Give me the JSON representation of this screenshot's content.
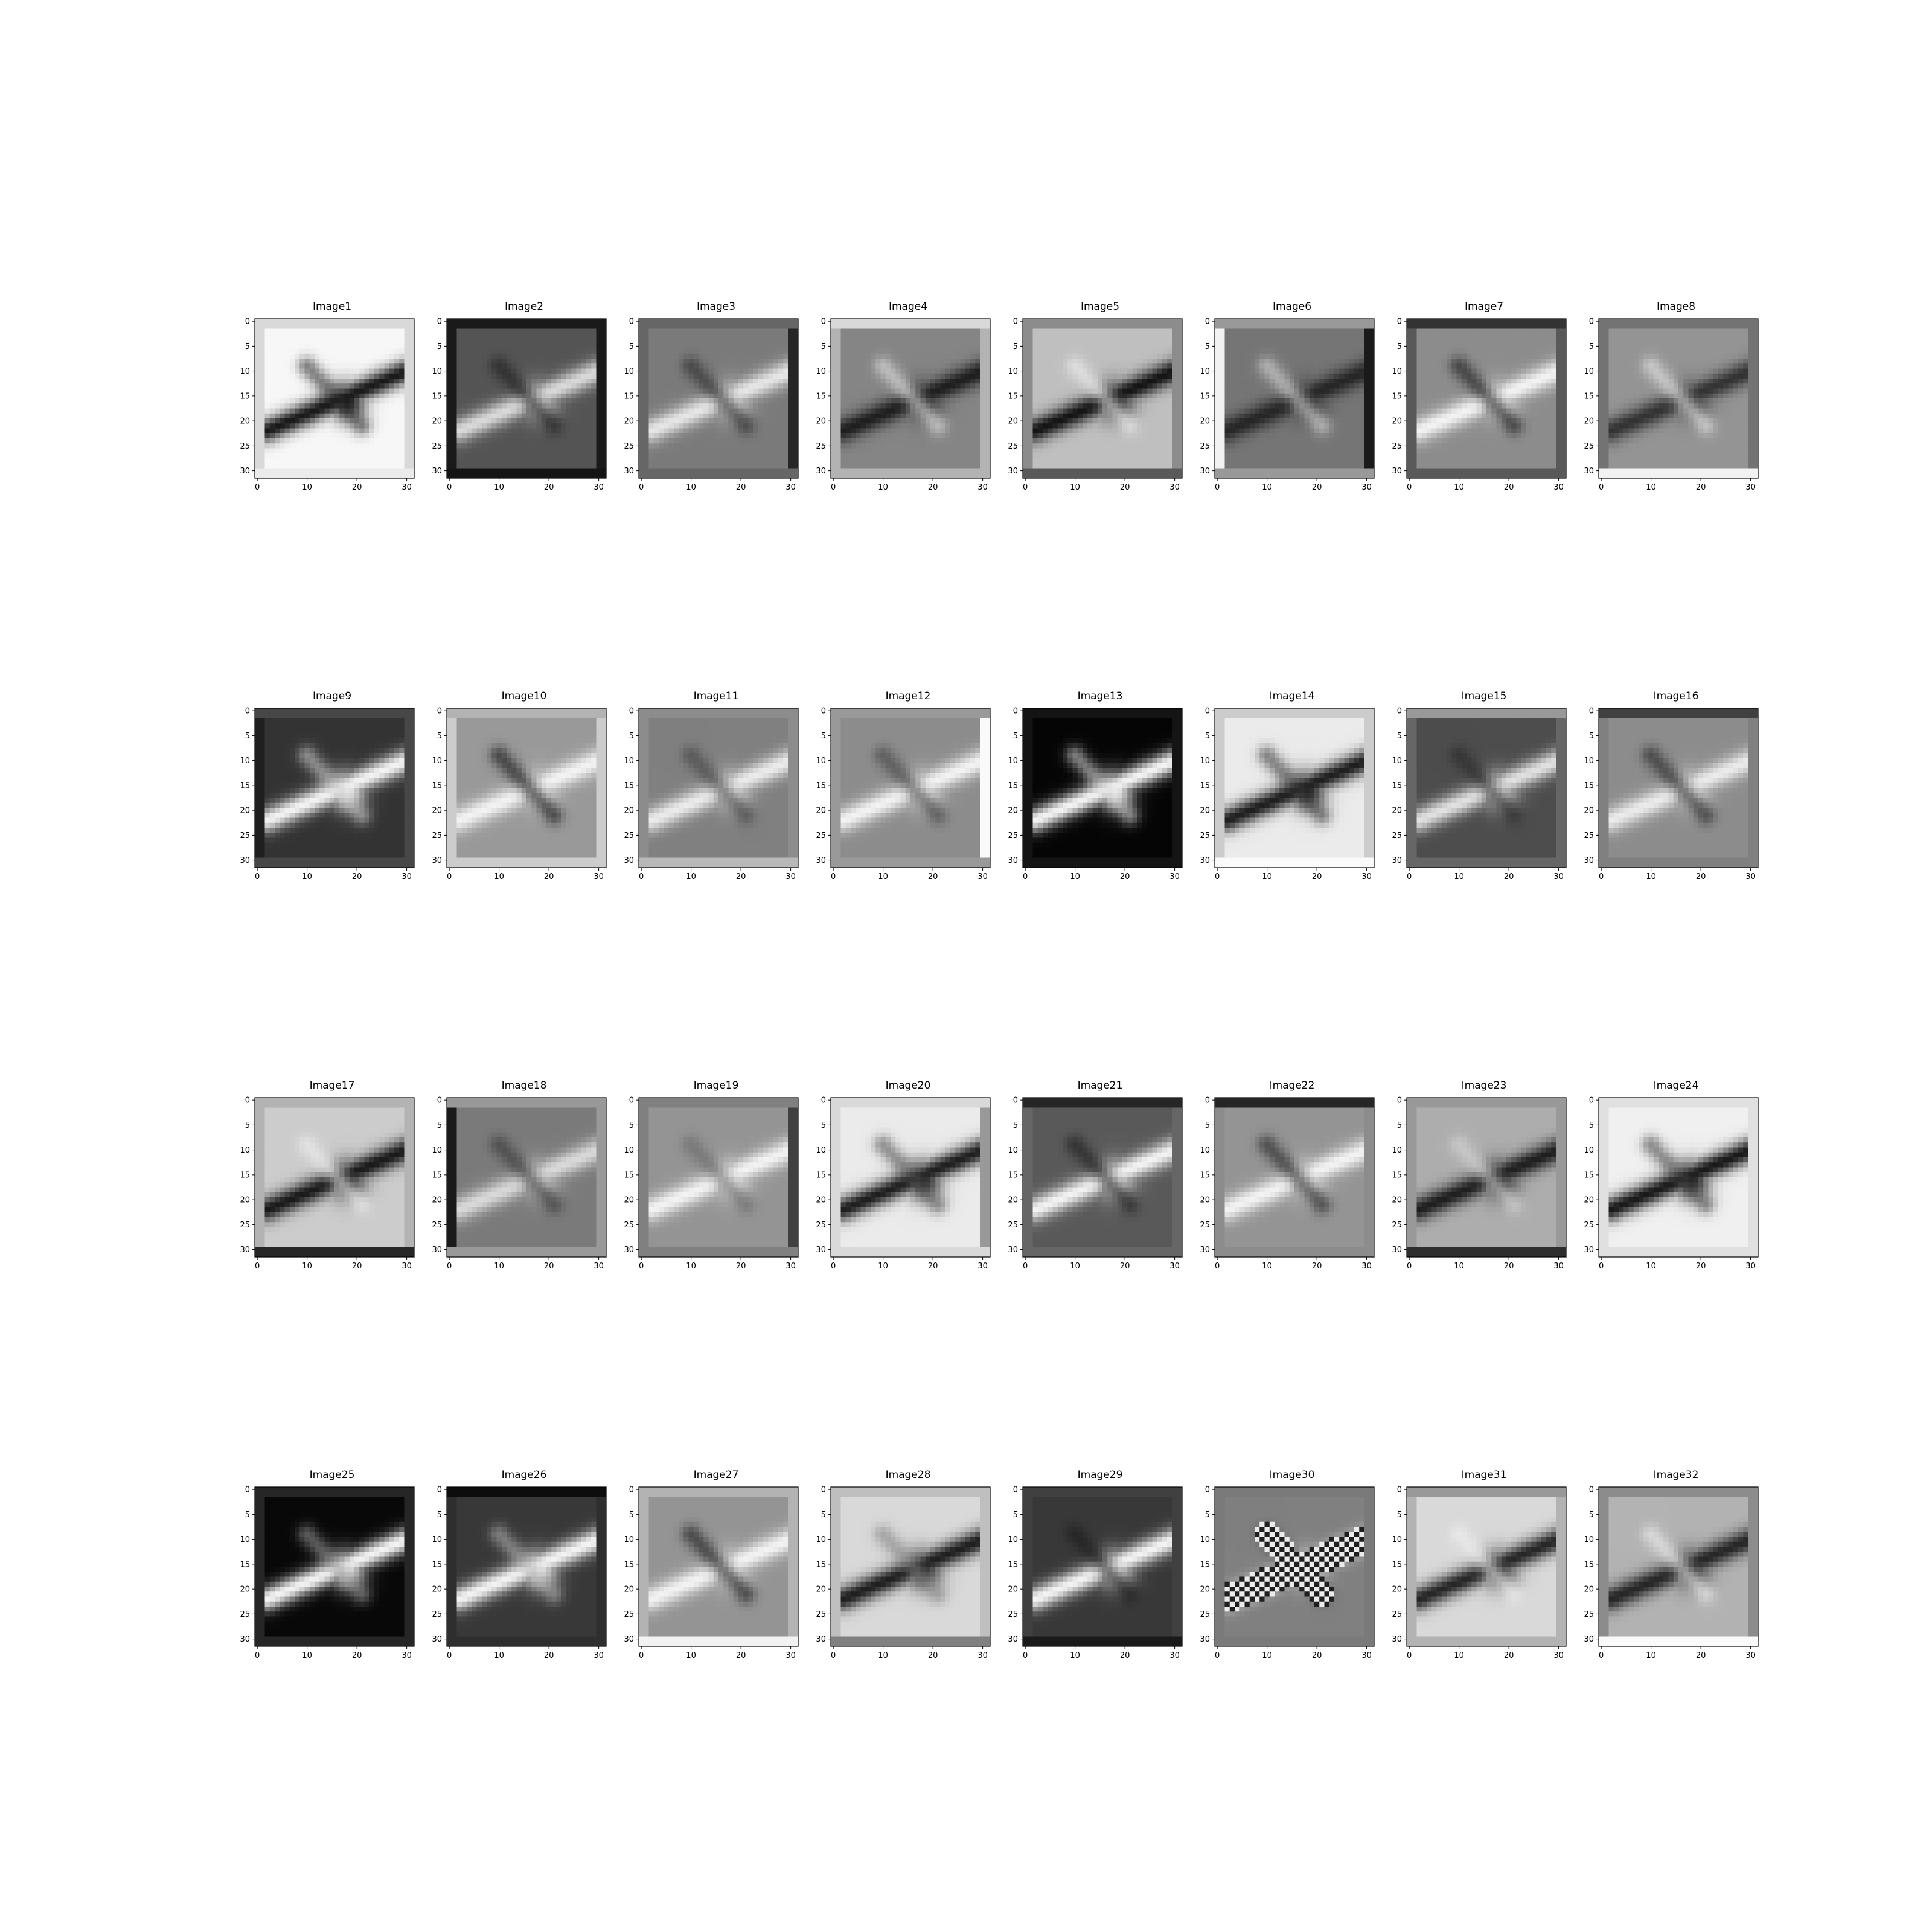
{
  "figure": {
    "grid": {
      "rows": 4,
      "cols": 8
    },
    "axes": {
      "x_ticks": [
        0,
        10,
        20,
        30
      ],
      "y_ticks": [
        0,
        5,
        10,
        15,
        20,
        25,
        30
      ],
      "xlim": [
        -0.5,
        31.5
      ],
      "ylim": [
        31.5,
        -0.5
      ]
    },
    "colormap": "gray",
    "panels": [
      {
        "title": "Image1",
        "bg": 0.97,
        "plane": 0.1,
        "wing": 0.15,
        "border": 0.85,
        "border_bottom": 0.92
      },
      {
        "title": "Image2",
        "bg": 0.33,
        "plane": 0.85,
        "wing": 0.1,
        "border": 0.1,
        "border_bottom": 0.08
      },
      {
        "title": "Image3",
        "bg": 0.48,
        "plane": 0.9,
        "wing": 0.15,
        "border": 0.4,
        "border_right": 0.15
      },
      {
        "title": "Image4",
        "bg": 0.52,
        "plane": 0.12,
        "wing": 0.9,
        "border": 0.7,
        "border_top": 0.85
      },
      {
        "title": "Image5",
        "bg": 0.75,
        "plane": 0.08,
        "wing": 0.95,
        "border": 0.55,
        "border_bottom": 0.35
      },
      {
        "title": "Image6",
        "bg": 0.46,
        "plane": 0.15,
        "wing": 0.85,
        "border": 0.6,
        "border_right": 0.1,
        "border_left": 0.95
      },
      {
        "title": "Image7",
        "bg": 0.55,
        "plane": 0.95,
        "wing": 0.08,
        "border": 0.35,
        "border_top": 0.2
      },
      {
        "title": "Image8",
        "bg": 0.58,
        "plane": 0.2,
        "wing": 0.92,
        "border": 0.45,
        "border_bottom": 0.95
      },
      {
        "title": "Image9",
        "bg": 0.2,
        "plane": 0.95,
        "wing": 0.8,
        "border": 0.28,
        "border_left": 0.12
      },
      {
        "title": "Image10",
        "bg": 0.6,
        "plane": 0.95,
        "wing": 0.05,
        "border": 0.8,
        "border_top": 0.7
      },
      {
        "title": "Image11",
        "bg": 0.5,
        "plane": 0.92,
        "wing": 0.25,
        "border": 0.55,
        "border_bottom": 0.72
      },
      {
        "title": "Image12",
        "bg": 0.55,
        "plane": 0.95,
        "wing": 0.25,
        "border": 0.6,
        "border_right": 0.98
      },
      {
        "title": "Image13",
        "bg": 0.02,
        "plane": 0.95,
        "wing": 0.85,
        "border": 0.08
      },
      {
        "title": "Image14",
        "bg": 0.92,
        "plane": 0.12,
        "wing": 0.2,
        "border": 0.8,
        "border_bottom": 0.98
      },
      {
        "title": "Image15",
        "bg": 0.3,
        "plane": 0.88,
        "wing": 0.15,
        "border": 0.4,
        "border_top": 0.6
      },
      {
        "title": "Image16",
        "bg": 0.55,
        "plane": 0.92,
        "wing": 0.12,
        "border": 0.5,
        "border_top": 0.25
      },
      {
        "title": "Image17",
        "bg": 0.8,
        "plane": 0.1,
        "wing": 0.95,
        "border": 0.7,
        "border_bottom": 0.15
      },
      {
        "title": "Image18",
        "bg": 0.48,
        "plane": 0.85,
        "wing": 0.2,
        "border": 0.6,
        "border_left": 0.1
      },
      {
        "title": "Image19",
        "bg": 0.58,
        "plane": 0.95,
        "wing": 0.4,
        "border": 0.5,
        "border_right": 0.25
      },
      {
        "title": "Image20",
        "bg": 0.92,
        "plane": 0.12,
        "wing": 0.3,
        "border": 0.85,
        "border_right": 0.6
      },
      {
        "title": "Image21",
        "bg": 0.35,
        "plane": 0.95,
        "wing": 0.1,
        "border": 0.4,
        "border_top": 0.15
      },
      {
        "title": "Image22",
        "bg": 0.58,
        "plane": 0.95,
        "wing": 0.12,
        "border": 0.55,
        "border_top": 0.15
      },
      {
        "title": "Image23",
        "bg": 0.68,
        "plane": 0.12,
        "wing": 0.85,
        "border": 0.6,
        "border_bottom": 0.18
      },
      {
        "title": "Image24",
        "bg": 0.94,
        "plane": 0.1,
        "wing": 0.25,
        "border": 0.88
      },
      {
        "title": "Image25",
        "bg": 0.03,
        "plane": 0.95,
        "wing": 0.6,
        "border": 0.15
      },
      {
        "title": "Image26",
        "bg": 0.22,
        "plane": 0.95,
        "wing": 0.7,
        "border": 0.18,
        "border_top": 0.05
      },
      {
        "title": "Image27",
        "bg": 0.58,
        "plane": 0.95,
        "wing": 0.08,
        "border": 0.7,
        "border_bottom": 0.95
      },
      {
        "title": "Image28",
        "bg": 0.85,
        "plane": 0.12,
        "wing": 0.5,
        "border": 0.75,
        "border_bottom": 0.5
      },
      {
        "title": "Image29",
        "bg": 0.22,
        "plane": 0.95,
        "wing": 0.1,
        "border": 0.25,
        "border_bottom": 0.1
      },
      {
        "title": "Image30",
        "bg": 0.5,
        "plane": 0.92,
        "wing": 0.1,
        "border": 0.48,
        "pattern": "checker"
      },
      {
        "title": "Image31",
        "bg": 0.85,
        "plane": 0.15,
        "wing": 0.95,
        "border": 0.7,
        "border_top": 0.6
      },
      {
        "title": "Image32",
        "bg": 0.7,
        "plane": 0.15,
        "wing": 0.95,
        "border": 0.55,
        "border_bottom": 0.98
      }
    ]
  }
}
